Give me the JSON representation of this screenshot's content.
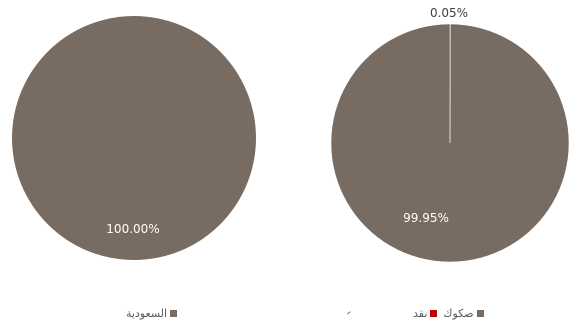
{
  "chart_data": [
    {
      "type": "pie",
      "title": "",
      "slices": [
        {
          "label": "السعودية",
          "value": 100.0,
          "display": "100.00%",
          "color": "#786c62"
        }
      ],
      "legend": {
        "position": "bottom",
        "entries": [
          "السعودية"
        ]
      }
    },
    {
      "type": "pie",
      "title": "",
      "slices": [
        {
          "label": "صكوك",
          "value": 99.95,
          "display": "99.95%",
          "color": "#786c62"
        },
        {
          "label": "نقد",
          "value": 0.05,
          "display": "0.05%",
          "color": "#c00000"
        }
      ],
      "legend": {
        "position": "bottom",
        "entries": [
          "صكوك",
          "نقد"
        ]
      }
    }
  ]
}
